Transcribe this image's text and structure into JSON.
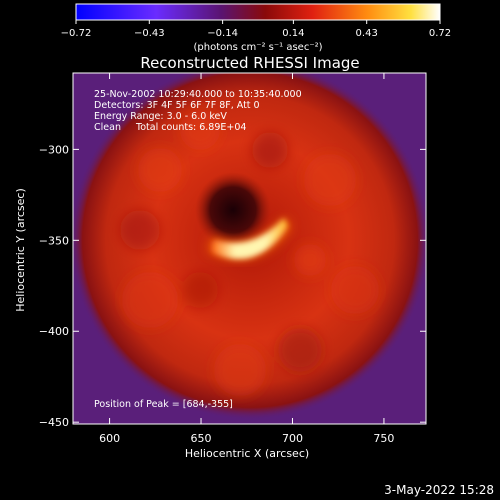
{
  "chart_data": {
    "type": "heatmap",
    "title": "Reconstructed RHESSI Image",
    "xlabel": "Heliocentric X (arcsec)",
    "ylabel": "Heliocentric Y (arcsec)",
    "xlim": [
      580,
      773
    ],
    "ylim": [
      -451,
      -258
    ],
    "xticks": [
      600,
      650,
      700,
      750
    ],
    "yticks": [
      -300,
      -350,
      -400,
      -450
    ],
    "colorbar": {
      "min": -0.72,
      "max": 0.72,
      "ticks": [
        -0.72,
        -0.43,
        -0.14,
        0.14,
        0.43,
        0.72
      ],
      "tick_labels": [
        "-0.72",
        "-0.43",
        "-0.14",
        "0.14",
        "0.43",
        "0.72"
      ],
      "unit_label": "(photons cm⁻² s⁻¹ asec⁻²)",
      "colormap": "blue-purple-red-yellow-white"
    },
    "annotations": [
      "25-Nov-2002 10:29:40.000 to 10:35:40.000",
      "Detectors: 3F 4F 5F 6F 7F 8F, Att 0",
      "Energy Range: 3.0 - 6.0 keV",
      "Clean     Total counts: 6.89E+04"
    ],
    "peak_label": "Position of Peak = [684,-355]",
    "peak_position": [
      684,
      -355
    ],
    "source": {
      "ring_center": [
        682,
        -350
      ],
      "ring_radius": 60,
      "core_arc_center": [
        682,
        -350
      ],
      "core_arc_radius": 25,
      "core_arc_span_deg": [
        200,
        340
      ],
      "dark_hole_center": [
        678,
        -328
      ]
    },
    "colors": {
      "background": "#5a1f7a",
      "ring": "#c82a10",
      "core": "#fff8c0"
    }
  },
  "footer": {
    "timestamp": "3-May-2022 15:28"
  }
}
